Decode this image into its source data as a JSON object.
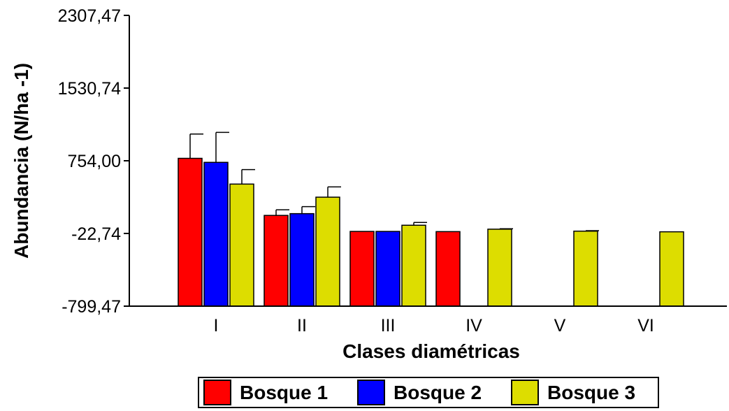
{
  "chart_data": {
    "type": "bar",
    "xlabel": "Clases diamétricas",
    "ylabel": "Abundancia (N/ha -1)",
    "categories": [
      "I",
      "II",
      "III",
      "IV",
      "V",
      "VI"
    ],
    "ylim": [
      -799.47,
      2307.47
    ],
    "yticks": [
      "2307,47",
      "1530,74",
      "754,00",
      "-22,74",
      "-799,47"
    ],
    "yticks_values": [
      2307.47,
      1530.74,
      754.0,
      -22.74,
      -799.47
    ],
    "series": [
      {
        "name": "Bosque 1",
        "color": "#ff0000",
        "values": [
          780,
          170,
          -1,
          -3,
          null,
          null
        ],
        "errors": [
          260,
          60,
          0,
          0,
          null,
          null
        ]
      },
      {
        "name": "Bosque 2",
        "color": "#0000ff",
        "values": [
          737,
          189,
          -1,
          null,
          null,
          null
        ],
        "errors": [
          320,
          75,
          0,
          null,
          null,
          null
        ]
      },
      {
        "name": "Bosque 3",
        "color": "#dddd00",
        "values": [
          505,
          365,
          65,
          23,
          2,
          -5
        ],
        "errors": [
          155,
          110,
          30,
          5,
          5,
          0
        ]
      }
    ],
    "legend_position": "bottom"
  }
}
